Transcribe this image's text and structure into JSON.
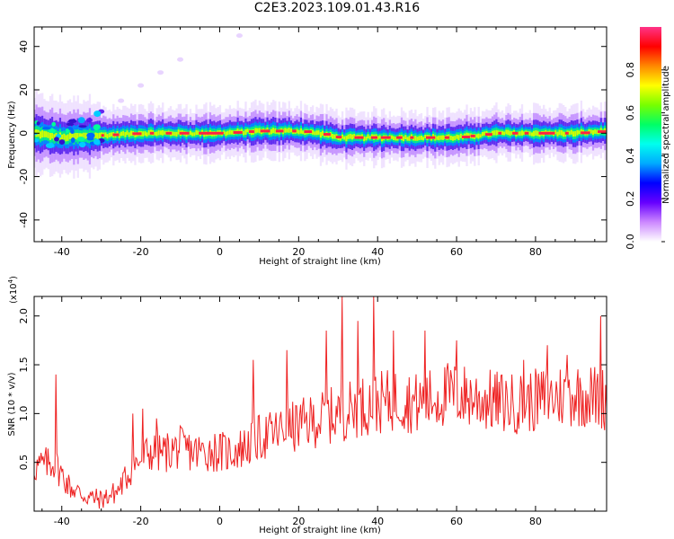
{
  "title": "C2E3.2023.109.01.43.R16",
  "chart_data": [
    {
      "type": "heatmap",
      "xlabel": "Height of straight line (km)",
      "ylabel": "Frequency (Hz)",
      "xlim": [
        -47,
        98
      ],
      "ylim": [
        -50,
        49
      ],
      "xticks": [
        -40,
        -20,
        0,
        20,
        40,
        60,
        80
      ],
      "yticks": [
        -40,
        -20,
        0,
        20,
        40
      ],
      "colorbar": {
        "label": "Normalized spectral amplitude",
        "range": [
          0,
          1
        ],
        "ticks": [
          0.0,
          0.2,
          0.4,
          0.6,
          0.8
        ],
        "colors": [
          "#ffffff",
          "#cc88ff",
          "#6600ff",
          "#0000ff",
          "#00aaff",
          "#00ffee",
          "#00ff66",
          "#77ff00",
          "#ffff00",
          "#ff8800",
          "#ff0000",
          "#ff3388"
        ]
      },
      "ridge": {
        "centerline_hz": [
          [
            -47,
            0
          ],
          [
            -40,
            -2
          ],
          [
            -30,
            -1
          ],
          [
            -20,
            0
          ],
          [
            -10,
            0
          ],
          [
            0,
            0
          ],
          [
            10,
            1
          ],
          [
            20,
            1
          ],
          [
            25,
            0
          ],
          [
            30,
            -2
          ],
          [
            40,
            -2
          ],
          [
            50,
            -2
          ],
          [
            60,
            -2
          ],
          [
            70,
            0
          ],
          [
            80,
            0
          ],
          [
            90,
            0
          ],
          [
            98,
            1
          ]
        ],
        "faint_branch_hz": [
          [
            -33,
            6
          ],
          [
            -30,
            10
          ],
          [
            -25,
            15
          ],
          [
            -20,
            22
          ],
          [
            -15,
            28
          ],
          [
            -10,
            34
          ],
          [
            5,
            45
          ]
        ]
      }
    },
    {
      "type": "line",
      "xlabel": "Height of straight line (km)",
      "ylabel": "SNR (10 * v/v)",
      "y_multiplier": "(x10",
      "y_multiplier_exp": "4",
      "xlim": [
        -47,
        98
      ],
      "ylim": [
        0,
        2.2
      ],
      "xticks": [
        -40,
        -20,
        0,
        20,
        40,
        60,
        80
      ],
      "yticks": [
        0.5,
        1.0,
        1.5,
        2.0
      ],
      "series": [
        {
          "color": "#ee2222",
          "anchors": [
            [
              -47,
              0.45
            ],
            [
              -42,
              0.5
            ],
            [
              -38,
              0.25
            ],
            [
              -34,
              0.15
            ],
            [
              -30,
              0.12
            ],
            [
              -26,
              0.2
            ],
            [
              -22,
              0.45
            ],
            [
              -18,
              0.6
            ],
            [
              -14,
              0.6
            ],
            [
              -10,
              0.65
            ],
            [
              -6,
              0.6
            ],
            [
              -2,
              0.62
            ],
            [
              2,
              0.6
            ],
            [
              6,
              0.65
            ],
            [
              10,
              0.75
            ],
            [
              14,
              0.8
            ],
            [
              18,
              0.85
            ],
            [
              22,
              0.9
            ],
            [
              26,
              0.95
            ],
            [
              30,
              1.0
            ],
            [
              34,
              1.05
            ],
            [
              38,
              1.1
            ],
            [
              42,
              1.12
            ],
            [
              46,
              1.15
            ],
            [
              50,
              1.1
            ],
            [
              54,
              1.15
            ],
            [
              58,
              1.2
            ],
            [
              62,
              1.18
            ],
            [
              66,
              1.15
            ],
            [
              70,
              1.12
            ],
            [
              74,
              1.1
            ],
            [
              78,
              1.12
            ],
            [
              82,
              1.15
            ],
            [
              86,
              1.18
            ],
            [
              90,
              1.2
            ],
            [
              94,
              1.18
            ],
            [
              98,
              1.15
            ]
          ],
          "spikes": [
            [
              -41.5,
              1.4
            ],
            [
              -22,
              1.0
            ],
            [
              -19.5,
              1.05
            ],
            [
              -16,
              0.95
            ],
            [
              8.5,
              1.55
            ],
            [
              17,
              1.65
            ],
            [
              27,
              1.85
            ],
            [
              31,
              2.2
            ],
            [
              35,
              1.95
            ],
            [
              39,
              2.2
            ],
            [
              44,
              1.85
            ],
            [
              52,
              1.85
            ],
            [
              60,
              1.75
            ],
            [
              77,
              1.55
            ],
            [
              83,
              1.7
            ],
            [
              88,
              1.6
            ],
            [
              96.5,
              2.0
            ]
          ]
        }
      ]
    }
  ]
}
